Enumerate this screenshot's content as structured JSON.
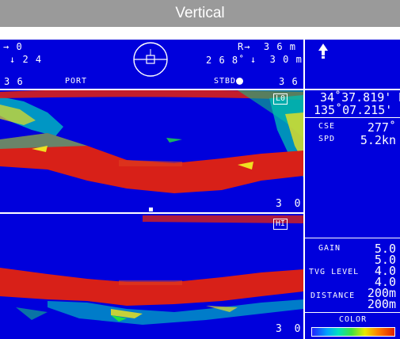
{
  "title": "Vertical",
  "sonar": {
    "tilt_top": "→ 0",
    "tilt_bottom": "↓ 2 4",
    "bearing": "2 6 8˚",
    "range_top": "R→  3 6 m",
    "range_bottom": "↓  3 0 m",
    "port_value": "3 6",
    "port_label": "PORT",
    "stbd_label": "STBD",
    "stbd_value": "3 6",
    "lo_tag": "L0",
    "hi_tag": "HI",
    "depth_marker_upper": "3 0",
    "depth_marker_lower": "3 0",
    "colors": {
      "background": "#0000dc",
      "echo_strong": "#d82018",
      "echo_mid": "#f0e020",
      "echo_weak": "#20c8a0"
    }
  },
  "side_panel": {
    "latitude": "34˚37.819' N",
    "longitude": "135˚07.215' E",
    "cse_label": "CSE",
    "cse_value": "277˚",
    "spd_label": "SPD",
    "spd_value": "5.2kn",
    "gain_label": "GAIN",
    "gain_values": [
      "5.0",
      "5.0"
    ],
    "tvg_label": "TVG LEVEL",
    "tvg_values": [
      "4.0",
      "4.0"
    ],
    "distance_label": "DISTANCE",
    "distance_values": [
      "200m",
      "200m"
    ],
    "color_label": "COLOR"
  }
}
